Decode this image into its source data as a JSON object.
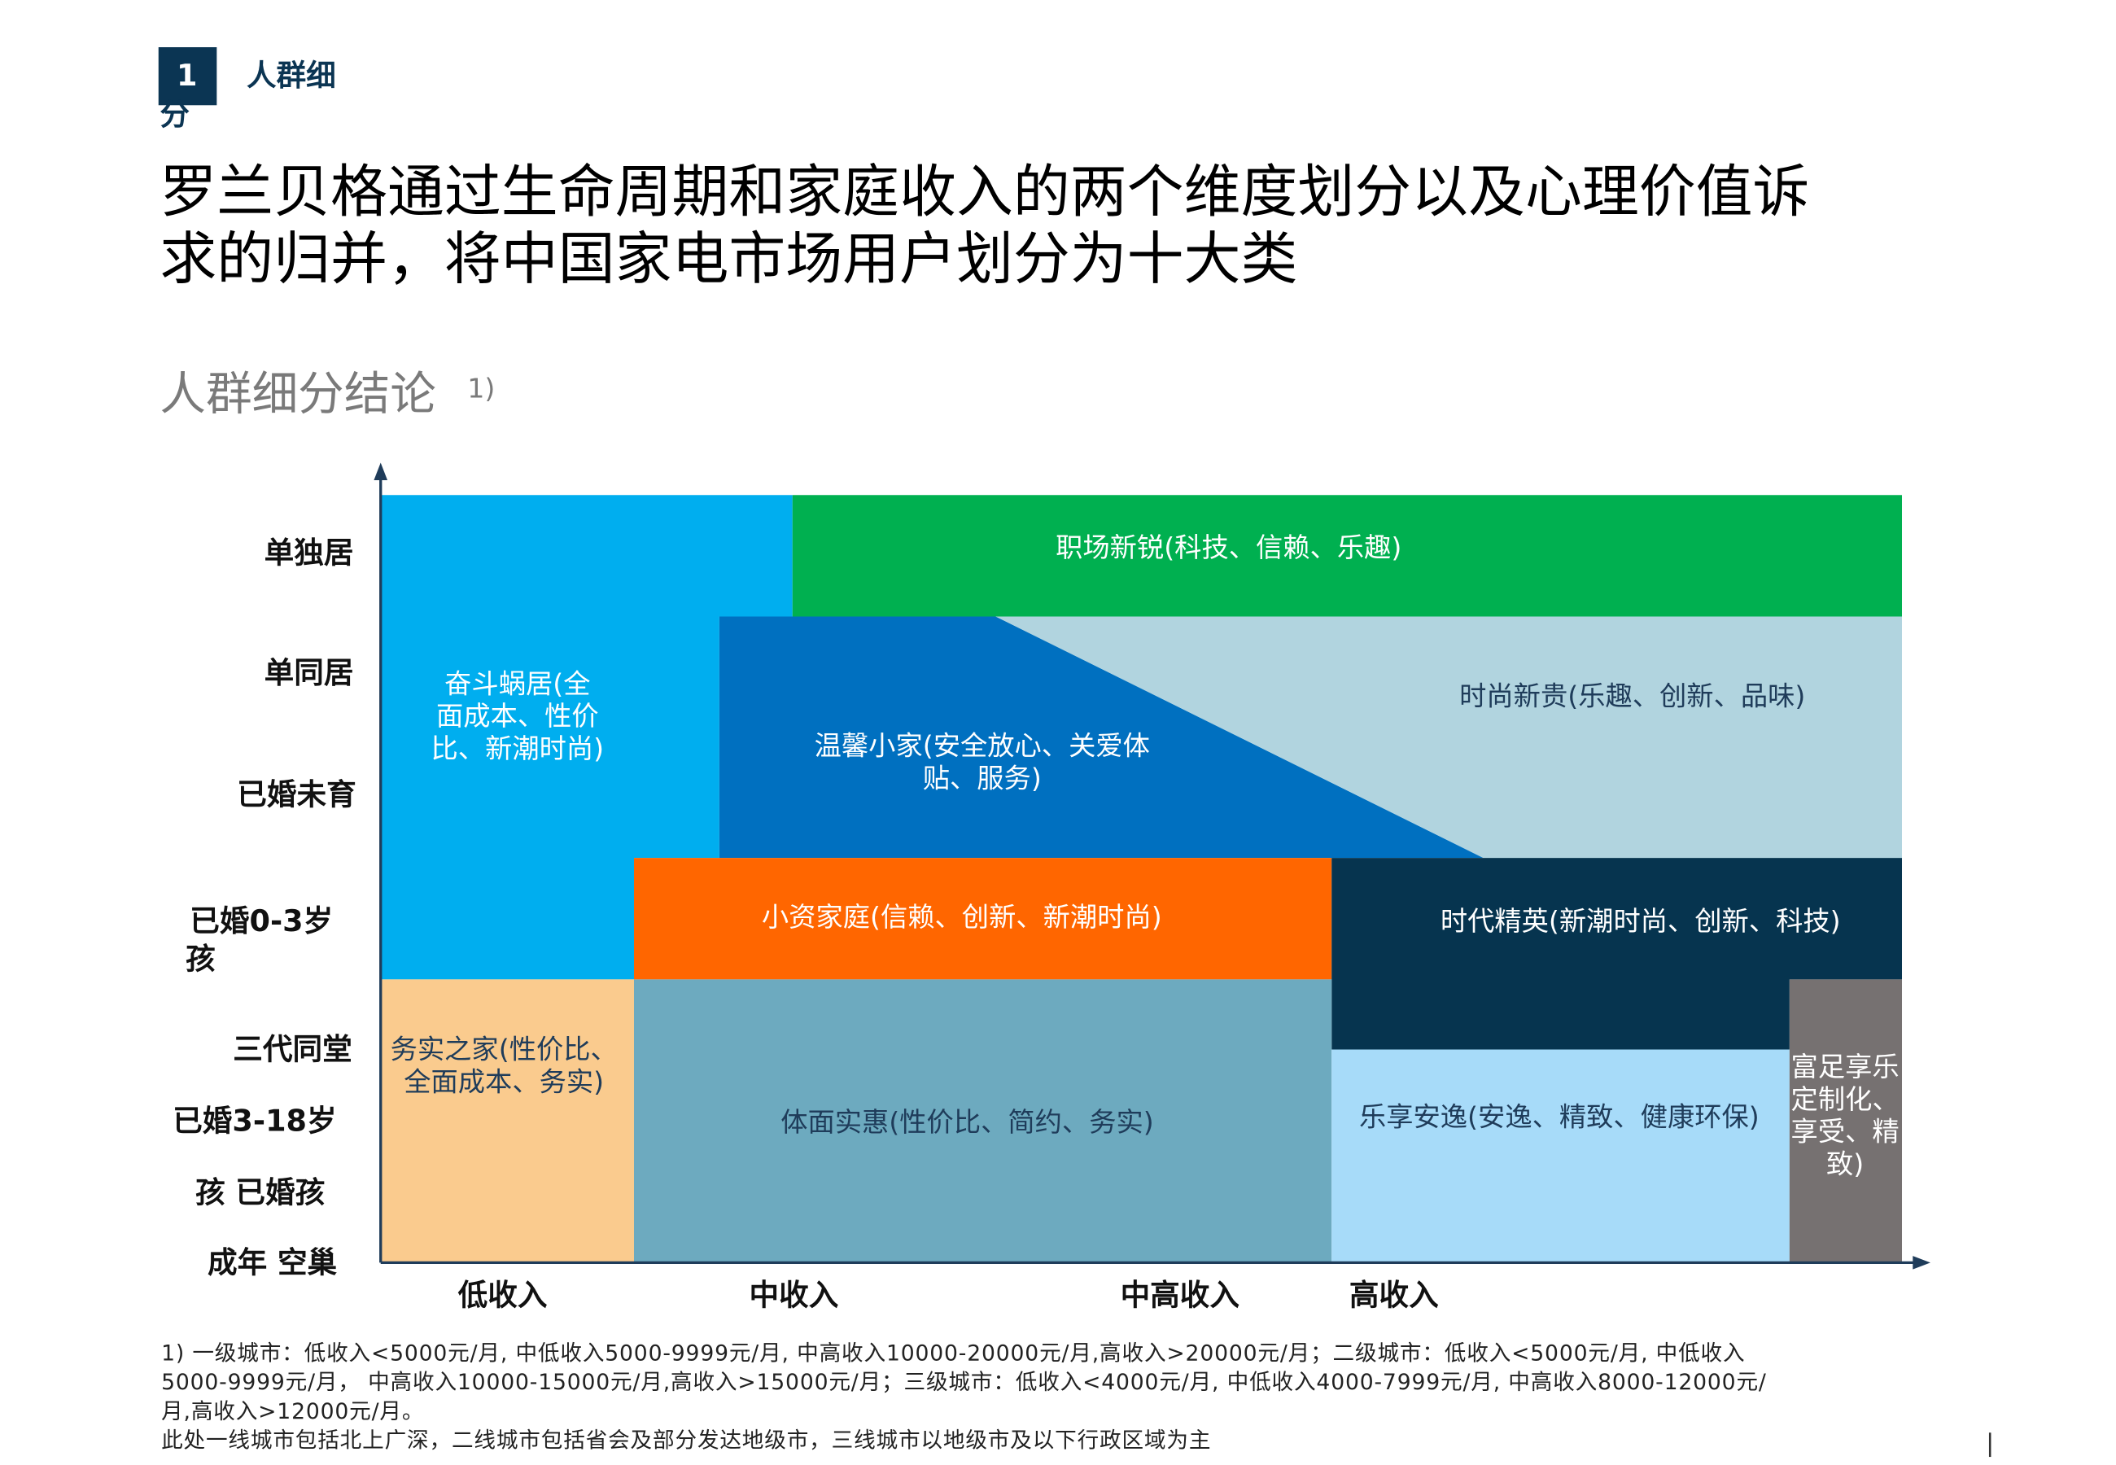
{
  "header": {
    "number": "1",
    "section_lines": [
      "人群细",
      "分"
    ]
  },
  "title_lines": [
    "罗兰贝格通过生命周期和家庭收入的两个维度划分以及心理价值诉",
    "求的归并，将中国家电市场用户划分为十大类"
  ],
  "subtitle": "人群细分结论",
  "subtitle_note": "1)",
  "y_labels": [
    "单独居",
    "单同居",
    "已婚未育",
    "已婚0-3岁",
    "孩",
    "三代同堂",
    "已婚3-18岁",
    "孩 已婚孩",
    "成年   空巢"
  ],
  "x_labels": [
    "低收入",
    "中收入",
    "中高收入",
    "高收入"
  ],
  "segments": [
    {
      "lines": [
        "奋斗蜗居(全",
        "面成本、性价",
        "比、新潮时尚)"
      ]
    },
    {
      "lines": [
        "职场新锐(科技、信赖、乐趣)"
      ]
    },
    {
      "lines": [
        "温馨小家(安全放心、关爱体",
        "贴、服务)"
      ]
    },
    {
      "lines": [
        "时尚新贵(乐趣、创新、品味)"
      ]
    },
    {
      "lines": [
        "小资家庭(信赖、创新、新潮时尚)"
      ]
    },
    {
      "lines": [
        "时代精英(新潮时尚、创新、科技)"
      ]
    },
    {
      "lines": [
        "务实之家(性价比、",
        "全面成本、务实)"
      ]
    },
    {
      "lines": [
        "体面实惠(性价比、简约、务实)"
      ]
    },
    {
      "lines": [
        "乐享安逸(安逸、精致、健康环保)"
      ]
    },
    {
      "lines": [
        "富足享乐",
        "定制化、",
        "享受、精",
        "致)"
      ]
    }
  ],
  "footnote_lines": [
    "1) 一级城市：低收入<5000元/月, 中低收入5000-9999元/月, 中高收入10000-20000元/月,高收入>20000元/月；二级城市：低收入<5000元/月, 中低收入",
    "5000-9999元/月， 中高收入10000-15000元/月,高收入>15000元/月；三级城市：低收入<4000元/月, 中低收入4000-7999元/月, 中高收入8000-12000元/",
    "月,高收入>12000元/月。",
    "此处一线城市包括北上广深，二线城市包括省会及部分发达地级市，三线城市以地级市及以下行政区域为主"
  ]
}
